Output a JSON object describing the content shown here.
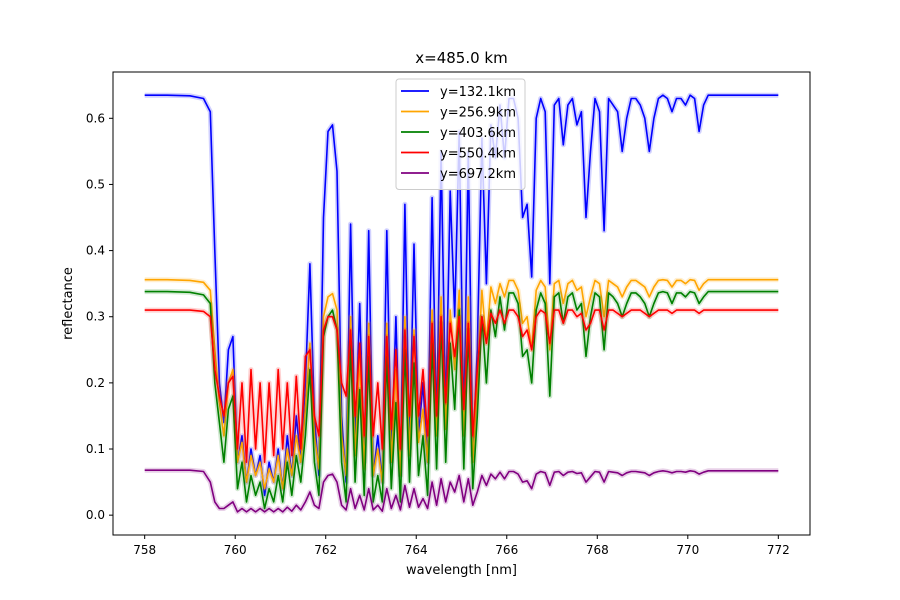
{
  "chart_data": {
    "type": "line",
    "title": "x=485.0 km",
    "xlabel": "wavelength [nm]",
    "ylabel": "reflectance",
    "xlim": [
      757.3,
      772.7
    ],
    "ylim": [
      -0.03,
      0.67
    ],
    "xticks": [
      758,
      760,
      762,
      764,
      766,
      768,
      770,
      772
    ],
    "yticks": [
      0.0,
      0.1,
      0.2,
      0.3,
      0.4,
      0.5,
      0.6
    ],
    "grid": false,
    "legend_position": "top-center",
    "x": [
      758.0,
      758.5,
      759.0,
      759.3,
      759.45,
      759.55,
      759.65,
      759.75,
      759.85,
      759.95,
      760.05,
      760.15,
      760.25,
      760.35,
      760.45,
      760.55,
      760.65,
      760.75,
      760.85,
      760.95,
      761.05,
      761.15,
      761.25,
      761.35,
      761.45,
      761.55,
      761.65,
      761.75,
      761.85,
      761.95,
      762.05,
      762.15,
      762.25,
      762.35,
      762.45,
      762.55,
      762.65,
      762.75,
      762.85,
      762.95,
      763.05,
      763.15,
      763.25,
      763.35,
      763.45,
      763.55,
      763.65,
      763.75,
      763.85,
      763.95,
      764.05,
      764.15,
      764.25,
      764.35,
      764.45,
      764.55,
      764.65,
      764.75,
      764.85,
      764.95,
      765.05,
      765.15,
      765.25,
      765.35,
      765.45,
      765.55,
      765.65,
      765.75,
      765.85,
      765.95,
      766.05,
      766.15,
      766.25,
      766.35,
      766.45,
      766.55,
      766.65,
      766.75,
      766.85,
      766.95,
      767.05,
      767.15,
      767.25,
      767.35,
      767.45,
      767.55,
      767.65,
      767.75,
      767.85,
      767.95,
      768.05,
      768.15,
      768.25,
      768.35,
      768.45,
      768.55,
      768.65,
      768.75,
      768.85,
      768.95,
      769.05,
      769.15,
      769.25,
      769.35,
      769.45,
      769.55,
      769.65,
      769.75,
      769.85,
      769.95,
      770.05,
      770.15,
      770.25,
      770.35,
      770.45,
      770.55,
      770.65,
      770.75,
      770.85,
      770.95,
      771.05,
      771.15,
      771.25,
      771.35,
      771.45,
      771.55,
      771.65,
      771.75,
      771.85,
      771.95,
      772.0
    ],
    "series": [
      {
        "name": "y=132.1km",
        "color": "#0000ff",
        "values": [
          0.635,
          0.635,
          0.634,
          0.63,
          0.61,
          0.4,
          0.2,
          0.14,
          0.25,
          0.27,
          0.08,
          0.12,
          0.05,
          0.1,
          0.06,
          0.09,
          0.03,
          0.08,
          0.05,
          0.1,
          0.04,
          0.12,
          0.06,
          0.15,
          0.08,
          0.2,
          0.38,
          0.15,
          0.06,
          0.45,
          0.58,
          0.59,
          0.52,
          0.15,
          0.05,
          0.44,
          0.1,
          0.32,
          0.08,
          0.43,
          0.06,
          0.12,
          0.05,
          0.43,
          0.08,
          0.3,
          0.06,
          0.47,
          0.1,
          0.41,
          0.12,
          0.2,
          0.08,
          0.48,
          0.13,
          0.55,
          0.15,
          0.49,
          0.3,
          0.58,
          0.13,
          0.55,
          0.09,
          0.25,
          0.57,
          0.35,
          0.59,
          0.54,
          0.62,
          0.54,
          0.63,
          0.63,
          0.6,
          0.45,
          0.47,
          0.36,
          0.6,
          0.63,
          0.61,
          0.35,
          0.62,
          0.63,
          0.56,
          0.62,
          0.63,
          0.59,
          0.61,
          0.45,
          0.55,
          0.63,
          0.61,
          0.43,
          0.63,
          0.62,
          0.61,
          0.55,
          0.6,
          0.63,
          0.63,
          0.62,
          0.6,
          0.55,
          0.6,
          0.63,
          0.635,
          0.63,
          0.61,
          0.63,
          0.63,
          0.62,
          0.635,
          0.63,
          0.58,
          0.62,
          0.635,
          0.635,
          0.635,
          0.635,
          0.635,
          0.635,
          0.635,
          0.635,
          0.635,
          0.635,
          0.635,
          0.635,
          0.635,
          0.635,
          0.635,
          0.635,
          0.635
        ]
      },
      {
        "name": "y=256.9km",
        "color": "#ffa500",
        "values": [
          0.356,
          0.356,
          0.355,
          0.352,
          0.34,
          0.25,
          0.17,
          0.12,
          0.2,
          0.22,
          0.08,
          0.11,
          0.05,
          0.09,
          0.06,
          0.08,
          0.04,
          0.07,
          0.05,
          0.09,
          0.04,
          0.1,
          0.06,
          0.12,
          0.08,
          0.16,
          0.26,
          0.12,
          0.07,
          0.3,
          0.33,
          0.335,
          0.31,
          0.12,
          0.06,
          0.3,
          0.09,
          0.24,
          0.07,
          0.29,
          0.06,
          0.1,
          0.05,
          0.29,
          0.08,
          0.22,
          0.06,
          0.3,
          0.09,
          0.28,
          0.11,
          0.16,
          0.08,
          0.31,
          0.12,
          0.33,
          0.13,
          0.31,
          0.22,
          0.34,
          0.12,
          0.33,
          0.08,
          0.2,
          0.34,
          0.26,
          0.345,
          0.32,
          0.35,
          0.33,
          0.355,
          0.355,
          0.34,
          0.29,
          0.3,
          0.25,
          0.34,
          0.355,
          0.345,
          0.25,
          0.35,
          0.355,
          0.32,
          0.35,
          0.355,
          0.34,
          0.345,
          0.3,
          0.33,
          0.355,
          0.35,
          0.3,
          0.355,
          0.35,
          0.345,
          0.33,
          0.345,
          0.355,
          0.355,
          0.35,
          0.345,
          0.33,
          0.345,
          0.355,
          0.356,
          0.355,
          0.345,
          0.355,
          0.355,
          0.35,
          0.356,
          0.355,
          0.34,
          0.35,
          0.356,
          0.356,
          0.356,
          0.356,
          0.356,
          0.356,
          0.356,
          0.356,
          0.356,
          0.356,
          0.356,
          0.356,
          0.356,
          0.356,
          0.356,
          0.356,
          0.356
        ]
      },
      {
        "name": "y=403.6km",
        "color": "#008000",
        "values": [
          0.338,
          0.338,
          0.337,
          0.333,
          0.32,
          0.2,
          0.14,
          0.08,
          0.16,
          0.18,
          0.04,
          0.08,
          0.02,
          0.06,
          0.03,
          0.05,
          0.01,
          0.04,
          0.02,
          0.06,
          0.02,
          0.08,
          0.03,
          0.09,
          0.05,
          0.12,
          0.22,
          0.08,
          0.03,
          0.27,
          0.3,
          0.31,
          0.28,
          0.08,
          0.02,
          0.26,
          0.05,
          0.19,
          0.03,
          0.24,
          0.02,
          0.06,
          0.02,
          0.24,
          0.04,
          0.17,
          0.02,
          0.25,
          0.05,
          0.23,
          0.06,
          0.12,
          0.03,
          0.26,
          0.07,
          0.29,
          0.08,
          0.26,
          0.16,
          0.31,
          0.07,
          0.28,
          0.04,
          0.15,
          0.3,
          0.2,
          0.31,
          0.27,
          0.33,
          0.28,
          0.336,
          0.336,
          0.32,
          0.24,
          0.25,
          0.2,
          0.31,
          0.336,
          0.32,
          0.18,
          0.33,
          0.336,
          0.29,
          0.33,
          0.336,
          0.31,
          0.32,
          0.24,
          0.3,
          0.336,
          0.33,
          0.25,
          0.336,
          0.33,
          0.32,
          0.3,
          0.32,
          0.336,
          0.336,
          0.33,
          0.32,
          0.3,
          0.32,
          0.336,
          0.338,
          0.336,
          0.32,
          0.336,
          0.336,
          0.33,
          0.338,
          0.336,
          0.32,
          0.33,
          0.338,
          0.338,
          0.338,
          0.338,
          0.338,
          0.338,
          0.338,
          0.338,
          0.338,
          0.338,
          0.338,
          0.338,
          0.338,
          0.338,
          0.338,
          0.338,
          0.338
        ]
      },
      {
        "name": "y=550.4km",
        "color": "#ff0000",
        "values": [
          0.31,
          0.31,
          0.31,
          0.308,
          0.3,
          0.22,
          0.18,
          0.15,
          0.2,
          0.21,
          0.1,
          0.2,
          0.08,
          0.22,
          0.1,
          0.2,
          0.08,
          0.2,
          0.09,
          0.22,
          0.1,
          0.2,
          0.09,
          0.21,
          0.1,
          0.24,
          0.25,
          0.15,
          0.12,
          0.28,
          0.3,
          0.3,
          0.28,
          0.2,
          0.18,
          0.28,
          0.15,
          0.26,
          0.12,
          0.27,
          0.12,
          0.2,
          0.1,
          0.27,
          0.13,
          0.25,
          0.1,
          0.28,
          0.15,
          0.27,
          0.15,
          0.22,
          0.12,
          0.29,
          0.15,
          0.3,
          0.17,
          0.29,
          0.24,
          0.3,
          0.16,
          0.29,
          0.12,
          0.22,
          0.3,
          0.26,
          0.305,
          0.29,
          0.31,
          0.29,
          0.31,
          0.31,
          0.3,
          0.27,
          0.28,
          0.25,
          0.3,
          0.31,
          0.305,
          0.26,
          0.31,
          0.31,
          0.29,
          0.31,
          0.31,
          0.3,
          0.305,
          0.28,
          0.29,
          0.31,
          0.31,
          0.28,
          0.31,
          0.31,
          0.305,
          0.3,
          0.305,
          0.31,
          0.31,
          0.31,
          0.305,
          0.3,
          0.305,
          0.31,
          0.31,
          0.31,
          0.305,
          0.31,
          0.31,
          0.31,
          0.31,
          0.31,
          0.305,
          0.31,
          0.31,
          0.31,
          0.31,
          0.31,
          0.31,
          0.31,
          0.31,
          0.31,
          0.31,
          0.31,
          0.31,
          0.31,
          0.31,
          0.31,
          0.31,
          0.31,
          0.31
        ]
      },
      {
        "name": "y=697.2km",
        "color": "#800080",
        "values": [
          0.068,
          0.068,
          0.068,
          0.066,
          0.05,
          0.02,
          0.01,
          0.01,
          0.015,
          0.02,
          0.005,
          0.01,
          0.005,
          0.01,
          0.005,
          0.01,
          0.005,
          0.01,
          0.005,
          0.01,
          0.005,
          0.012,
          0.006,
          0.015,
          0.008,
          0.02,
          0.035,
          0.015,
          0.01,
          0.05,
          0.06,
          0.062,
          0.05,
          0.015,
          0.008,
          0.04,
          0.01,
          0.03,
          0.008,
          0.04,
          0.008,
          0.015,
          0.006,
          0.04,
          0.01,
          0.03,
          0.008,
          0.045,
          0.012,
          0.04,
          0.012,
          0.025,
          0.01,
          0.05,
          0.015,
          0.055,
          0.02,
          0.05,
          0.035,
          0.06,
          0.02,
          0.055,
          0.015,
          0.035,
          0.06,
          0.045,
          0.062,
          0.055,
          0.065,
          0.055,
          0.066,
          0.066,
          0.062,
          0.05,
          0.052,
          0.04,
          0.062,
          0.066,
          0.064,
          0.045,
          0.065,
          0.066,
          0.06,
          0.065,
          0.066,
          0.063,
          0.064,
          0.05,
          0.058,
          0.066,
          0.065,
          0.05,
          0.066,
          0.065,
          0.064,
          0.06,
          0.064,
          0.066,
          0.066,
          0.065,
          0.064,
          0.06,
          0.064,
          0.066,
          0.067,
          0.066,
          0.064,
          0.066,
          0.066,
          0.065,
          0.067,
          0.066,
          0.062,
          0.065,
          0.067,
          0.067,
          0.067,
          0.067,
          0.067,
          0.067,
          0.067,
          0.067,
          0.067,
          0.067,
          0.067,
          0.067,
          0.067,
          0.067,
          0.067,
          0.067,
          0.067
        ]
      }
    ]
  }
}
